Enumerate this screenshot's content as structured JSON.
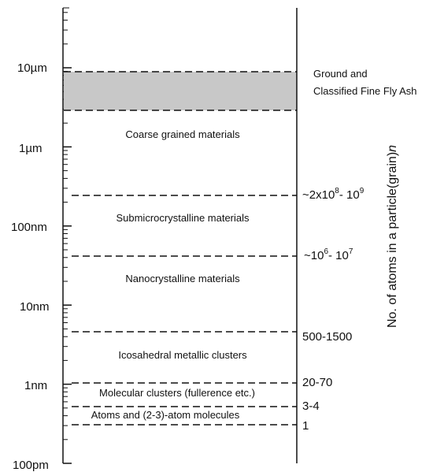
{
  "left_axis": {
    "labels": [
      "10µm",
      "1µm",
      "100nm",
      "10nm",
      "1nm",
      "100pm"
    ]
  },
  "shaded_band": {
    "label_line1": "Ground  and",
    "label_line2": "Classified Fine Fly Ash",
    "fill": "#c8c8c8"
  },
  "regions": [
    "Coarse grained materials",
    "Submicrocrystalline materials",
    "Nanocrystalline materials",
    "Icosahedral metallic clusters",
    "Molecular clusters (fullerence etc.)",
    "Atoms and (2-3)-atom molecules"
  ],
  "atom_counts": {
    "c1_base": "~2x10",
    "c1_exp": "8",
    "c1_tail": "- 10",
    "c1_exp2": "9",
    "c2_base": "~10",
    "c2_exp": "6",
    "c2_tail": "- 10",
    "c2_exp2": "7",
    "c3": "500-1500",
    "c4": "20-70",
    "c5": "3-4",
    "c6": "1"
  },
  "right_axis": {
    "title": "No. of atoms in a particle(grain)",
    "title_var": "n"
  }
}
